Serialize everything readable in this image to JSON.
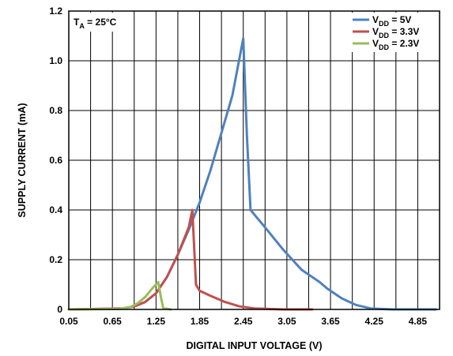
{
  "chart_data": {
    "type": "line",
    "xlabel": "DIGITAL INPUT VOLTAGE (V)",
    "ylabel": "SUPPLY CURRENT (mA)",
    "xlim": [
      0.05,
      5.15
    ],
    "ylim": [
      0,
      1.2
    ],
    "x_ticks": [
      "0.05",
      "0.65",
      "1.25",
      "1.85",
      "2.45",
      "3.05",
      "3.65",
      "4.25",
      "4.85"
    ],
    "x_tick_values": [
      0.05,
      0.65,
      1.25,
      1.85,
      2.45,
      3.05,
      3.65,
      4.25,
      4.85
    ],
    "y_ticks": [
      "0",
      "0.2",
      "0.4",
      "0.6",
      "0.8",
      "1.0",
      "1.2"
    ],
    "y_tick_values": [
      0,
      0.2,
      0.4,
      0.6,
      0.8,
      1.0,
      1.2
    ],
    "x_grid_step": 0.3,
    "grid": true,
    "legend_position": "top-right",
    "annotation": {
      "base": "T",
      "sub": "A",
      "rest": " = 25°C"
    },
    "series": [
      {
        "name": "VDD = 5V",
        "legend": {
          "base": "V",
          "sub": "DD",
          "rest": " = 5V"
        },
        "color": "#4f81bd",
        "x": [
          0.05,
          0.8,
          0.95,
          1.1,
          1.25,
          1.4,
          1.55,
          1.7,
          1.85,
          2.0,
          2.15,
          2.3,
          2.45,
          2.5,
          2.55,
          2.75,
          3.0,
          3.25,
          3.5,
          3.6,
          3.8,
          4.0,
          4.2,
          4.5,
          4.85,
          5.1
        ],
        "y": [
          0.0,
          0.004,
          0.012,
          0.03,
          0.065,
          0.13,
          0.22,
          0.32,
          0.43,
          0.56,
          0.71,
          0.86,
          1.09,
          0.7,
          0.4,
          0.33,
          0.24,
          0.16,
          0.11,
          0.085,
          0.045,
          0.018,
          0.004,
          0.0,
          0.0,
          0.0
        ]
      },
      {
        "name": "VDD = 3.3V",
        "legend": {
          "base": "V",
          "sub": "DD",
          "rest": " = 3.3V"
        },
        "color": "#c0504d",
        "x": [
          0.05,
          0.8,
          0.95,
          1.1,
          1.25,
          1.4,
          1.55,
          1.7,
          1.75,
          1.8,
          1.85,
          2.0,
          2.2,
          2.4,
          2.6,
          3.0,
          3.4
        ],
        "y": [
          0.0,
          0.004,
          0.012,
          0.03,
          0.065,
          0.13,
          0.22,
          0.33,
          0.4,
          0.1,
          0.075,
          0.055,
          0.03,
          0.012,
          0.004,
          0.0,
          0.0
        ]
      },
      {
        "name": "VDD = 2.3V",
        "legend": {
          "base": "V",
          "sub": "DD",
          "rest": " = 2.3V"
        },
        "color": "#9bbb59",
        "x": [
          0.05,
          0.75,
          0.9,
          1.0,
          1.1,
          1.2,
          1.28,
          1.32,
          1.35,
          1.45
        ],
        "y": [
          0.0,
          0.002,
          0.01,
          0.025,
          0.05,
          0.085,
          0.11,
          0.045,
          0.005,
          0.0
        ]
      }
    ]
  }
}
